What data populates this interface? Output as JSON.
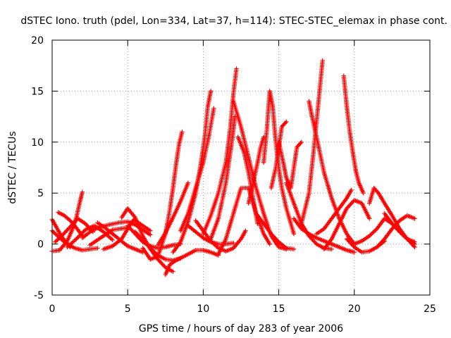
{
  "chart_data": {
    "type": "scatter",
    "title": "dSTEC Iono. truth (pdel, Lon=334, Lat=37, h=114): STEC-STEC_elemax in phase cont.",
    "xlabel": "GPS time / hours of day 283 of year 2006",
    "ylabel": "dSTEC  / TECUs",
    "xlim": [
      0,
      25
    ],
    "ylim": [
      -5,
      20
    ],
    "xticks": [
      "0",
      "5",
      "10",
      "15",
      "20",
      "25"
    ],
    "yticks": [
      "-5",
      "0",
      "5",
      "10",
      "15",
      "20"
    ],
    "grid": true,
    "marker": "+",
    "color": "#ff0000",
    "series": [
      {
        "arcs": [
          {
            "x": [
              0.0,
              0.5,
              1.0,
              1.3,
              1.6,
              1.8,
              2.0
            ],
            "y": [
              -0.7,
              -0.6,
              0.3,
              1.3,
              2.6,
              3.9,
              5.1
            ]
          },
          {
            "x": [
              0.0,
              0.3,
              0.6,
              0.9,
              1.2
            ],
            "y": [
              2.4,
              1.6,
              0.8,
              0.2,
              -0.3
            ]
          },
          {
            "x": [
              0.0,
              0.5,
              1.0,
              1.5,
              2.0,
              2.5,
              3.0
            ],
            "y": [
              1.3,
              0.6,
              0.0,
              -0.4,
              -0.6,
              -0.5,
              -0.4
            ]
          },
          {
            "x": [
              0.2,
              0.7,
              1.2,
              1.7,
              2.2,
              2.7
            ],
            "y": [
              0.2,
              0.9,
              1.7,
              2.5,
              2.0,
              1.2
            ]
          },
          {
            "x": [
              0.4,
              0.8,
              1.2,
              1.6,
              2.0
            ],
            "y": [
              3.1,
              2.8,
              2.3,
              1.6,
              0.8
            ]
          },
          {
            "x": [
              1.0,
              1.6,
              2.2,
              2.8,
              3.4,
              4.0
            ],
            "y": [
              -0.3,
              0.5,
              1.4,
              1.8,
              1.2,
              0.4
            ]
          },
          {
            "x": [
              2.0,
              2.6,
              3.2,
              3.8,
              4.4,
              5.0,
              5.5,
              6.0,
              6.5
            ],
            "y": [
              0.6,
              1.3,
              1.7,
              1.9,
              2.1,
              2.2,
              1.9,
              1.4,
              0.9
            ]
          },
          {
            "x": [
              2.5,
              3.0,
              3.5,
              4.0,
              4.5,
              5.0
            ],
            "y": [
              -0.1,
              0.4,
              0.9,
              1.4,
              1.5,
              1.6
            ]
          },
          {
            "x": [
              3.0,
              3.5,
              4.0,
              4.5,
              5.0,
              5.5,
              6.0
            ],
            "y": [
              2.1,
              1.6,
              1.0,
              0.4,
              -0.2,
              -0.5,
              -0.8
            ]
          },
          {
            "x": [
              3.4,
              4.0,
              4.6,
              5.0,
              5.4,
              6.0,
              6.5
            ],
            "y": [
              -0.5,
              -0.2,
              0.5,
              1.5,
              2.4,
              1.8,
              1.3
            ]
          },
          {
            "x": [
              4.6,
              5.0,
              5.5,
              6.0,
              6.5,
              7.0,
              7.5,
              8.0
            ],
            "y": [
              2.6,
              3.5,
              2.6,
              0.8,
              -0.5,
              -1.5,
              -2.3,
              -2.7
            ]
          },
          {
            "x": [
              5.0,
              5.5,
              6.0,
              6.5,
              7.0,
              7.5,
              8.0,
              8.5
            ],
            "y": [
              1.8,
              1.0,
              0.2,
              -0.2,
              -0.4,
              -0.3,
              -0.1,
              0.0
            ]
          },
          {
            "x": [
              5.5,
              6.0,
              6.5,
              7.0,
              7.5,
              8.0,
              8.5
            ],
            "y": [
              1.2,
              0.4,
              -0.4,
              -1.1,
              -1.5,
              -1.6,
              -1.4
            ]
          },
          {
            "x": [
              6.0,
              6.5,
              7.0,
              7.5,
              7.8,
              8.0,
              8.2,
              8.4,
              8.6
            ],
            "y": [
              -0.4,
              -1.5,
              -1.2,
              1.0,
              3.5,
              5.5,
              7.8,
              9.8,
              11.0
            ]
          },
          {
            "x": [
              7.0,
              7.5,
              8.0,
              8.5,
              9.0
            ],
            "y": [
              -0.1,
              1.1,
              2.6,
              4.2,
              6.0
            ]
          },
          {
            "x": [
              7.5,
              7.8,
              8.2,
              8.6,
              9.0,
              9.5,
              10.0,
              10.5,
              11.0
            ],
            "y": [
              -3.0,
              -2.0,
              -1.6,
              -1.3,
              -1.0,
              -0.6,
              -0.6,
              -0.8,
              -1.1
            ]
          },
          {
            "x": [
              8.0,
              8.5,
              9.0,
              9.5,
              9.8,
              10.1,
              10.3,
              10.5
            ],
            "y": [
              -0.8,
              0.2,
              2.2,
              5.0,
              7.5,
              10.5,
              13.5,
              15.0
            ]
          },
          {
            "x": [
              8.5,
              9.0,
              9.5,
              10.0,
              10.4,
              10.7
            ],
            "y": [
              1.3,
              3.0,
              5.5,
              8.0,
              10.8,
              13.3
            ]
          },
          {
            "x": [
              9.0,
              9.5,
              10.0,
              10.5,
              11.0,
              11.5,
              12.0
            ],
            "y": [
              1.8,
              1.2,
              0.6,
              0.2,
              0.0,
              0.0,
              0.1
            ]
          },
          {
            "x": [
              9.5,
              10.0,
              10.5,
              11.0,
              11.5,
              12.0,
              12.5,
              12.8
            ],
            "y": [
              2.3,
              1.3,
              0.3,
              -0.4,
              -0.7,
              -0.4,
              0.5,
              1.3
            ]
          },
          {
            "x": [
              10.0,
              10.5,
              11.0,
              11.5,
              11.8,
              12.0,
              12.2
            ],
            "y": [
              1.0,
              2.8,
              5.0,
              8.0,
              11.5,
              14.8,
              17.2
            ]
          },
          {
            "x": [
              10.5,
              11.0,
              11.5,
              11.9,
              12.1
            ],
            "y": [
              0.5,
              2.5,
              6.0,
              10.0,
              12.5
            ]
          },
          {
            "x": [
              11.0,
              11.5,
              12.0,
              12.5,
              13.0,
              13.5,
              14.0,
              14.4
            ],
            "y": [
              -1.0,
              0.5,
              3.0,
              5.5,
              5.5,
              3.0,
              1.0,
              0.0
            ]
          },
          {
            "x": [
              12.0,
              12.5,
              13.0,
              13.5,
              14.0,
              14.5,
              15.0,
              15.5
            ],
            "y": [
              14.0,
              11.5,
              8.5,
              5.5,
              3.0,
              0.8,
              -0.3,
              -0.5
            ]
          },
          {
            "x": [
              12.3,
              12.7,
              13.0,
              13.3,
              13.6
            ],
            "y": [
              10.5,
              9.0,
              7.0,
              4.5,
              2.0
            ]
          },
          {
            "x": [
              13.0,
              13.3,
              13.6,
              13.8,
              14.0
            ],
            "y": [
              4.0,
              6.0,
              8.0,
              9.5,
              10.5
            ]
          },
          {
            "x": [
              13.5,
              14.0,
              14.5,
              15.0,
              15.5,
              16.0
            ],
            "y": [
              3.0,
              2.0,
              1.0,
              0.2,
              -0.4,
              -0.5
            ]
          },
          {
            "x": [
              14.0,
              14.2,
              14.4,
              14.6,
              14.8,
              15.0,
              15.2,
              15.5,
              16.0
            ],
            "y": [
              8.0,
              11.0,
              15.0,
              13.5,
              10.0,
              7.5,
              5.5,
              3.5,
              1.0
            ]
          },
          {
            "x": [
              14.5,
              14.8,
              15.0,
              15.2,
              15.5
            ],
            "y": [
              5.5,
              7.5,
              9.5,
              11.5,
              12.0
            ]
          },
          {
            "x": [
              15.0,
              15.3,
              15.5,
              15.8,
              16.0,
              16.2,
              16.5
            ],
            "y": [
              10.0,
              8.0,
              6.5,
              5.5,
              7.5,
              9.5,
              10.0
            ]
          },
          {
            "x": [
              15.5,
              16.0,
              16.5,
              17.0,
              17.5,
              18.0,
              18.5
            ],
            "y": [
              6.0,
              4.0,
              2.0,
              0.8,
              0.0,
              -0.4,
              -0.5
            ]
          },
          {
            "x": [
              16.0,
              16.5,
              17.0,
              17.5,
              18.0,
              18.5,
              19.0,
              19.5,
              20.0
            ],
            "y": [
              2.5,
              1.5,
              1.0,
              0.6,
              0.3,
              0.0,
              -0.3,
              -0.6,
              -0.8
            ]
          },
          {
            "x": [
              16.5,
              17.0,
              17.3,
              17.5,
              17.7,
              17.9
            ],
            "y": [
              2.0,
              5.0,
              9.0,
              12.0,
              15.0,
              18.0
            ]
          },
          {
            "x": [
              17.0,
              17.2,
              17.5,
              18.0,
              18.5,
              19.0,
              19.5,
              20.0
            ],
            "y": [
              14.0,
              12.5,
              10.5,
              7.0,
              4.5,
              2.5,
              1.0,
              0.0
            ]
          },
          {
            "x": [
              17.5,
              18.0,
              18.5,
              19.0,
              19.5,
              19.8
            ],
            "y": [
              1.0,
              1.5,
              2.5,
              3.5,
              4.5,
              5.3
            ]
          },
          {
            "x": [
              18.0,
              18.5,
              19.0,
              19.5,
              20.0,
              20.5,
              21.0
            ],
            "y": [
              -0.5,
              0.5,
              2.0,
              3.5,
              4.3,
              4.0,
              2.5
            ]
          },
          {
            "x": [
              19.3,
              19.5,
              19.7,
              19.9,
              20.1,
              20.3,
              20.6
            ],
            "y": [
              16.5,
              13.5,
              11.0,
              9.0,
              7.2,
              6.0,
              5.0
            ]
          },
          {
            "x": [
              19.5,
              20.0,
              20.5,
              21.0,
              21.5,
              22.0
            ],
            "y": [
              0.5,
              -0.3,
              -0.8,
              -0.7,
              -0.3,
              0.3
            ]
          },
          {
            "x": [
              20.0,
              20.5,
              21.0,
              21.5,
              22.0,
              22.5,
              23.0,
              23.5,
              24.0
            ],
            "y": [
              0.0,
              0.3,
              0.8,
              1.5,
              2.5,
              2.0,
              1.2,
              0.5,
              0.0
            ]
          },
          {
            "x": [
              21.0,
              21.3,
              21.6,
              22.0,
              22.5,
              23.0,
              23.5,
              24.0
            ],
            "y": [
              4.0,
              5.5,
              5.0,
              4.0,
              2.8,
              1.5,
              0.5,
              -0.3
            ]
          },
          {
            "x": [
              21.5,
              22.0,
              22.5,
              23.0,
              23.5,
              24.0
            ],
            "y": [
              -0.3,
              0.5,
              1.5,
              2.3,
              2.8,
              2.5
            ]
          },
          {
            "x": [
              22.0,
              22.5,
              23.0,
              23.5,
              24.0
            ],
            "y": [
              3.0,
              2.0,
              1.2,
              0.5,
              0.2
            ]
          }
        ]
      }
    ]
  }
}
